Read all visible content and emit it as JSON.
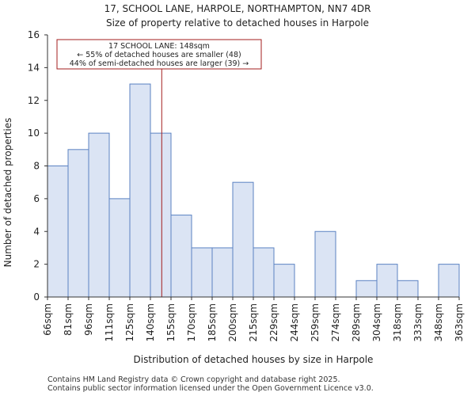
{
  "chart_data": {
    "type": "histogram",
    "title": "17, SCHOOL LANE, HARPOLE, NORTHAMPTON, NN7 4DR",
    "subtitle": "Size of property relative to detached houses in Harpole",
    "xlabel": "Distribution of detached houses by size in Harpole",
    "ylabel": "Number of detached properties",
    "ylim": [
      0,
      16
    ],
    "yticks": [
      0,
      2,
      4,
      6,
      8,
      10,
      12,
      14,
      16
    ],
    "categories": [
      "66sqm",
      "81sqm",
      "96sqm",
      "111sqm",
      "125sqm",
      "140sqm",
      "155sqm",
      "170sqm",
      "185sqm",
      "200sqm",
      "215sqm",
      "229sqm",
      "244sqm",
      "259sqm",
      "274sqm",
      "289sqm",
      "304sqm",
      "318sqm",
      "333sqm",
      "348sqm",
      "363sqm"
    ],
    "values": [
      8,
      9,
      10,
      6,
      13,
      10,
      5,
      3,
      3,
      7,
      3,
      2,
      0,
      4,
      0,
      1,
      2,
      1,
      0,
      2
    ],
    "marker": {
      "value": 148,
      "bin_position": 5.55
    },
    "annotation": {
      "line1": "17 SCHOOL LANE: 148sqm",
      "line2": "← 55% of detached houses are smaller (48)",
      "line3": "44% of semi-detached houses are larger (39) →"
    },
    "colors": {
      "bar_fill": "#dbe4f4",
      "bar_stroke": "#5b82c2",
      "marker": "#a31e1e"
    }
  },
  "footer": {
    "line1": "Contains HM Land Registry data © Crown copyright and database right 2025.",
    "line2": "Contains public sector information licensed under the Open Government Licence v3.0."
  }
}
